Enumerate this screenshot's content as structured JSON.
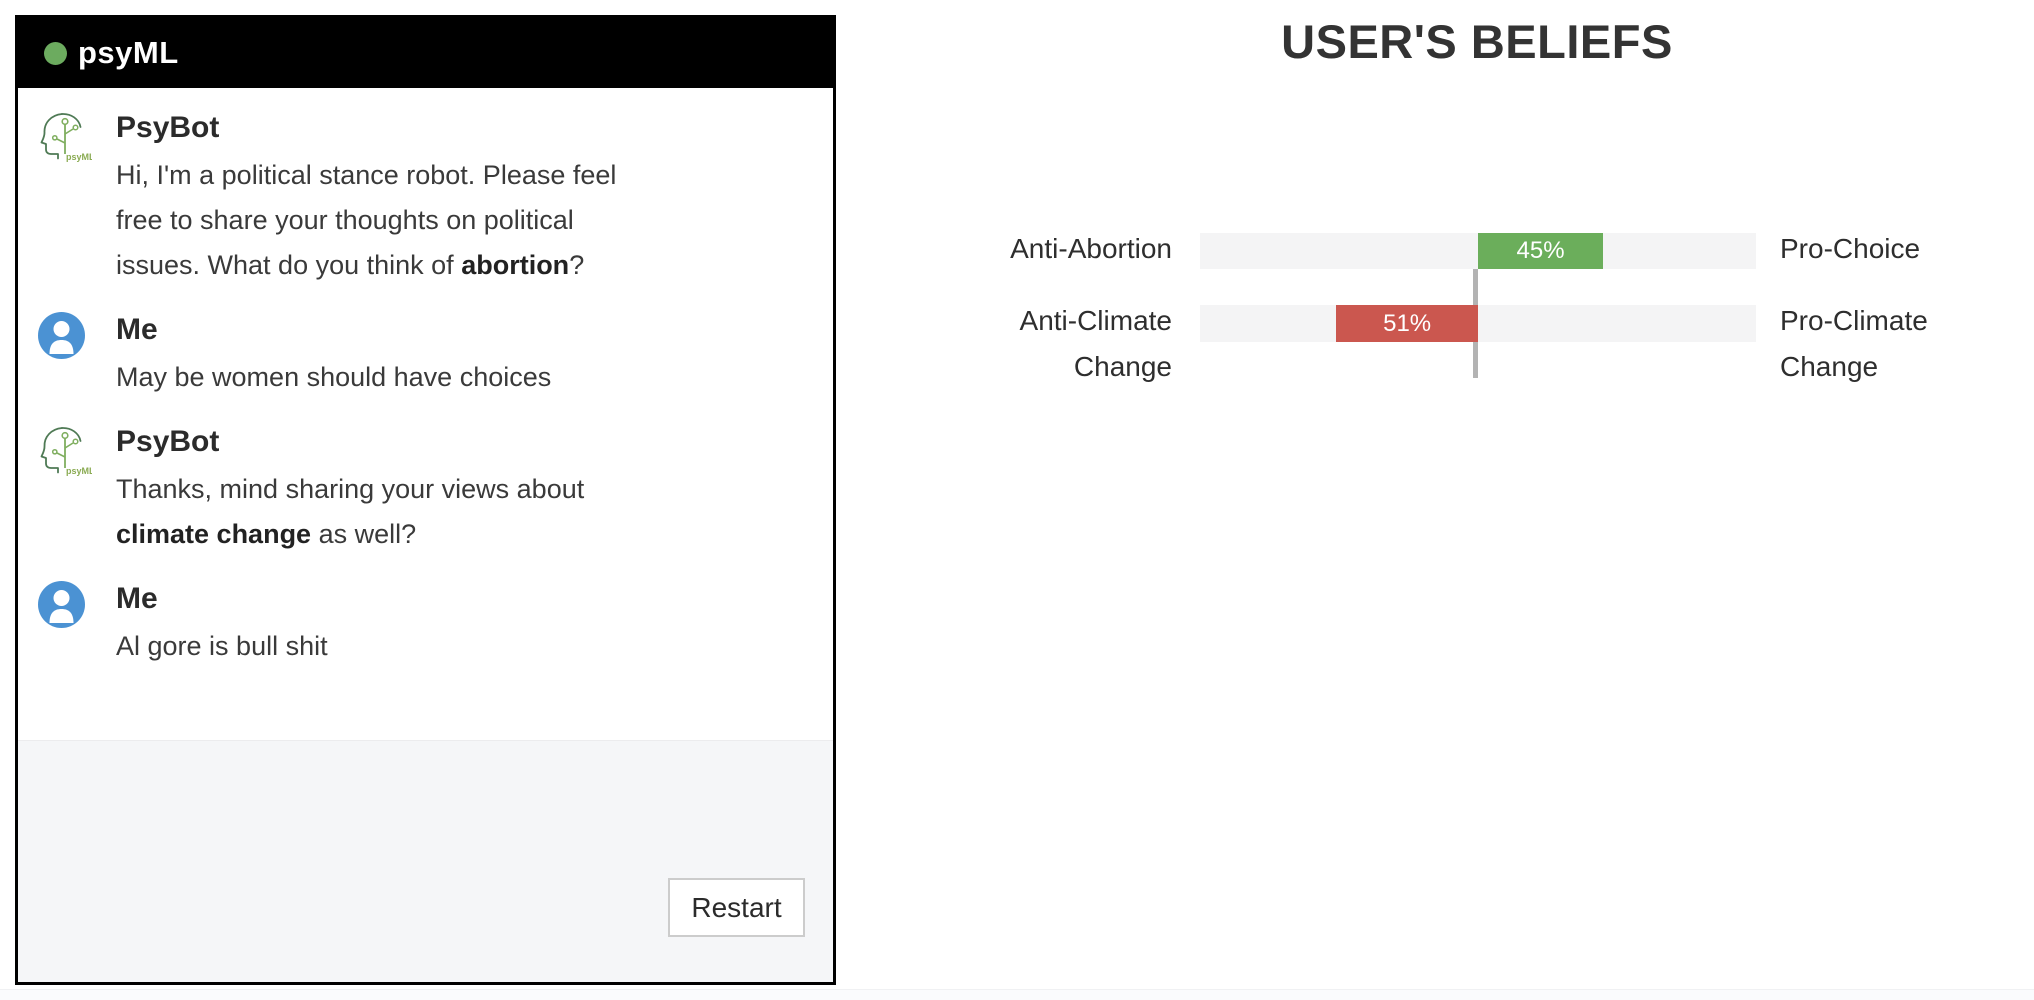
{
  "chat": {
    "brand": "psyML",
    "status_dot_color": "#6cab5f",
    "header_bg": "#000000",
    "messages": [
      {
        "author": "PsyBot",
        "avatar": "psybot-logo-icon",
        "lines": [
          [
            {
              "t": "Hi, I'm a political stance robot. Please feel"
            }
          ],
          [
            {
              "t": "free to share your thoughts on political"
            }
          ],
          [
            {
              "t": "issues. What do you think of "
            },
            {
              "t": "abortion",
              "b": true
            },
            {
              "t": "?"
            }
          ]
        ]
      },
      {
        "author": "Me",
        "avatar": "user-avatar-icon",
        "lines": [
          [
            {
              "t": "May be women should have choices"
            }
          ]
        ]
      },
      {
        "author": "PsyBot",
        "avatar": "psybot-logo-icon",
        "lines": [
          [
            {
              "t": "Thanks, mind sharing your views about"
            }
          ],
          [
            {
              "t": "climate change",
              "b": true
            },
            {
              "t": " as well?"
            }
          ]
        ]
      },
      {
        "author": "Me",
        "avatar": "user-avatar-icon",
        "lines": [
          [
            {
              "t": "Al gore is bull shit"
            }
          ]
        ]
      }
    ],
    "restart_label": "Restart"
  },
  "chart_data": {
    "type": "bar",
    "title": "USER'S BELIEFS",
    "orientation": "horizontal-diverging",
    "legend_position": "none",
    "grid": false,
    "axis_range_pct_from_center": [
      0,
      100
    ],
    "track_color": "#f4f4f5",
    "center_line_color": "#b3b3b3",
    "rows": [
      {
        "left_label": "Anti-Abortion",
        "left_label_lines": [
          "Anti-Abortion"
        ],
        "right_label": "Pro-Choice",
        "right_label_lines": [
          "Pro-Choice"
        ],
        "value_pct": 45,
        "value_label": "45%",
        "direction": "right",
        "bar_color": "#6bae5b"
      },
      {
        "left_label": "Anti-Climate Change",
        "left_label_lines": [
          "Anti-Climate",
          "Change"
        ],
        "right_label": "Pro-Climate Change",
        "right_label_lines": [
          "Pro-Climate",
          "Change"
        ],
        "value_pct": 51,
        "value_label": "51%",
        "direction": "left",
        "bar_color": "#cb574f"
      }
    ]
  }
}
